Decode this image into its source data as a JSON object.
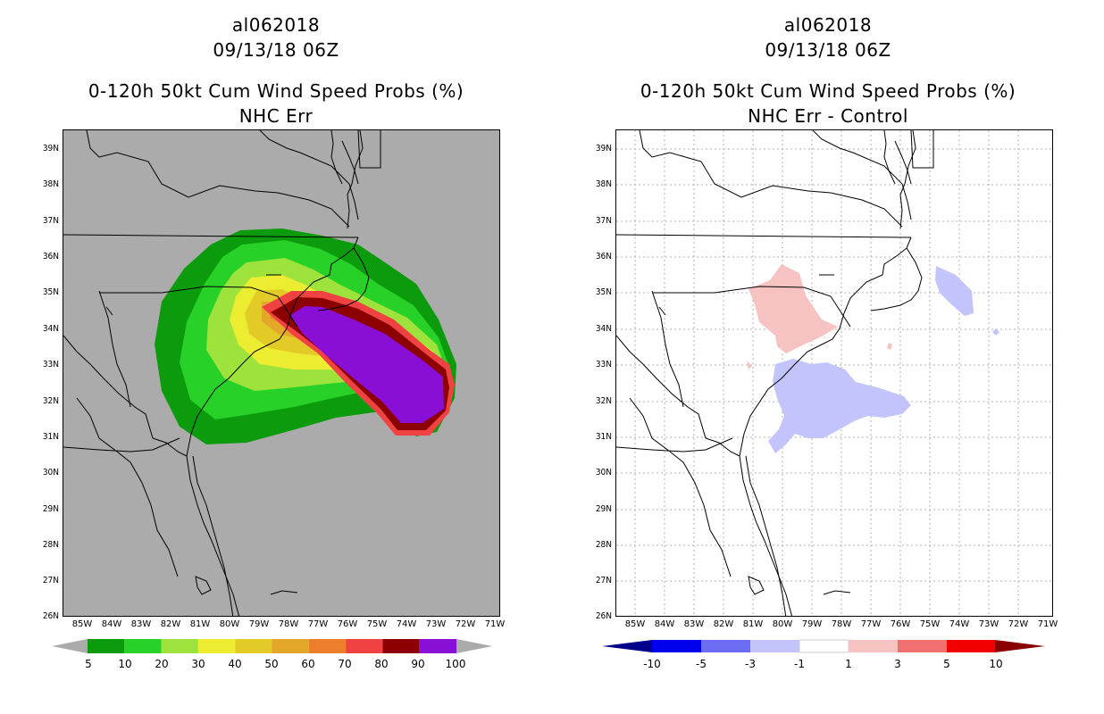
{
  "left": {
    "storm_id": "al062018",
    "datetime": "09/13/18 06Z",
    "product": "0-120h 50kt Cum Wind Speed Probs (%)",
    "subtitle": "NHC Err",
    "colorbar": {
      "labels": [
        "5",
        "10",
        "20",
        "30",
        "40",
        "50",
        "60",
        "70",
        "80",
        "90",
        "100"
      ],
      "colors": [
        "#0c9b0c",
        "#27d127",
        "#9de33c",
        "#ecec31",
        "#e3cb27",
        "#e4a72a",
        "#ed7f2c",
        "#f04242",
        "#8c0000",
        "#8a0fd6"
      ],
      "under_color": "#aaaaaa",
      "over_color": "#aaaaaa"
    }
  },
  "right": {
    "storm_id": "al062018",
    "datetime": "09/13/18 06Z",
    "product": "0-120h 50kt Cum Wind Speed Probs (%)",
    "subtitle": "NHC Err - Control",
    "colorbar": {
      "labels": [
        "-10",
        "-5",
        "-3",
        "-1",
        "1",
        "3",
        "5",
        "10"
      ],
      "colors": [
        "#0000ef",
        "#6c6cf5",
        "#c4c4fd",
        "#ffffff",
        "#f7c2c2",
        "#f07070",
        "#f20000"
      ],
      "under_color": "#00008a",
      "over_color": "#8a0000"
    }
  },
  "map": {
    "lat_labels": [
      "39N",
      "38N",
      "37N",
      "36N",
      "35N",
      "34N",
      "33N",
      "32N",
      "31N",
      "30N",
      "29N",
      "28N",
      "27N",
      "26N"
    ],
    "lon_labels": [
      "85W",
      "84W",
      "83W",
      "82W",
      "81W",
      "80W",
      "79W",
      "78W",
      "77W",
      "76W",
      "75W",
      "74W",
      "73W",
      "72W",
      "71W"
    ]
  }
}
